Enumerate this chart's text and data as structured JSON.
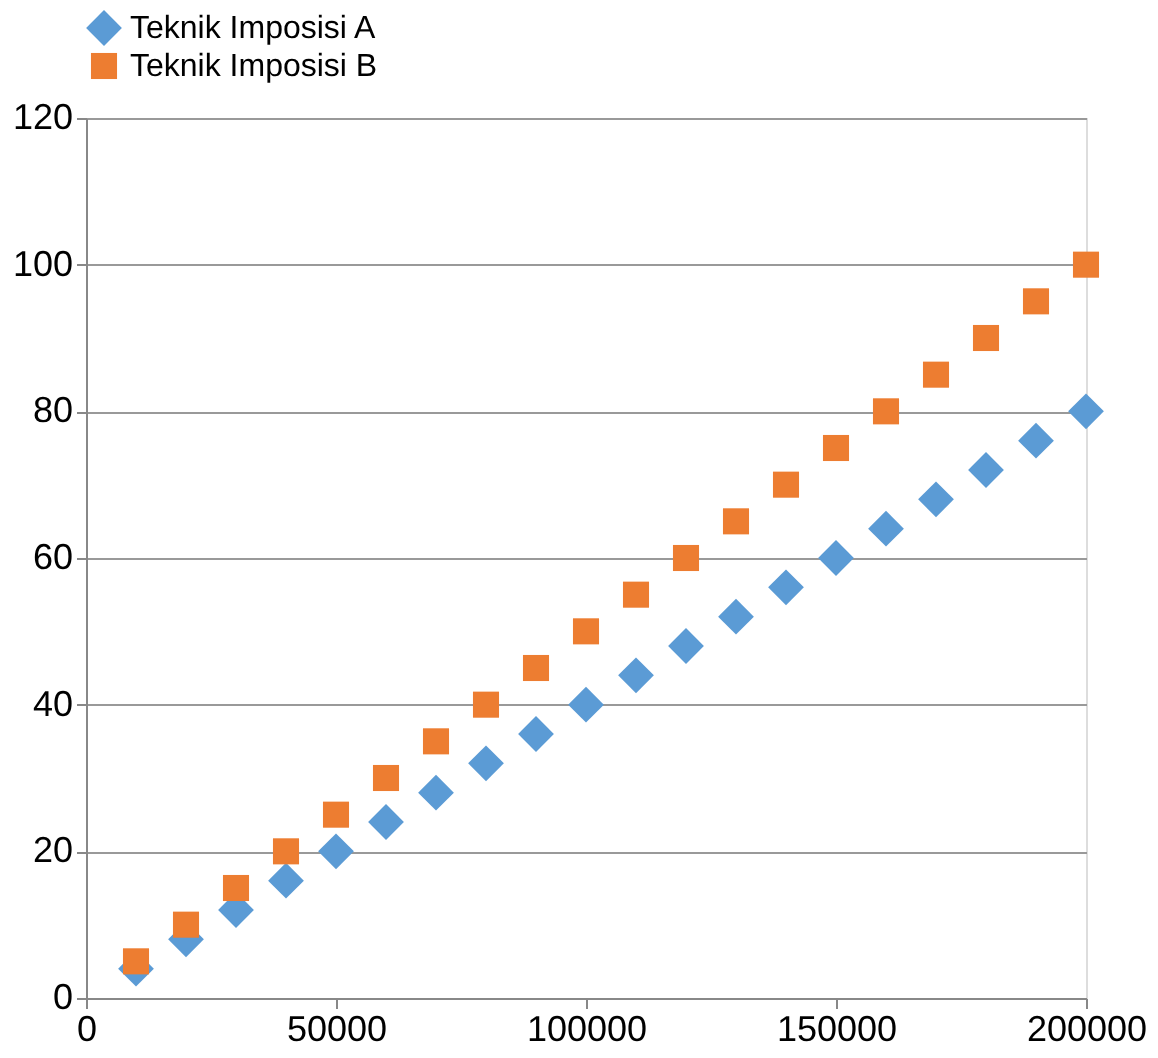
{
  "chart_data": {
    "type": "scatter",
    "x": [
      10000,
      20000,
      30000,
      40000,
      50000,
      60000,
      70000,
      80000,
      90000,
      100000,
      110000,
      120000,
      130000,
      140000,
      150000,
      160000,
      170000,
      180000,
      190000,
      200000
    ],
    "series": [
      {
        "name": "Teknik Imposisi A",
        "color": "#5b9bd5",
        "marker": "diamond",
        "values": [
          4,
          8,
          12,
          16,
          20,
          24,
          28,
          32,
          36,
          40,
          44,
          48,
          52,
          56,
          60,
          64,
          68,
          72,
          76,
          80
        ]
      },
      {
        "name": "Teknik Imposisi B",
        "color": "#ed7d31",
        "marker": "square",
        "values": [
          5,
          10,
          15,
          20,
          25,
          30,
          35,
          40,
          45,
          50,
          55,
          60,
          65,
          70,
          75,
          80,
          85,
          90,
          95,
          100
        ]
      }
    ],
    "xlim": [
      0,
      200000
    ],
    "xticks": [
      0,
      50000,
      100000,
      150000,
      200000
    ],
    "ylim": [
      0,
      120
    ],
    "yticks": [
      0,
      20,
      40,
      60,
      80,
      100,
      120
    ],
    "grid": "y",
    "legend": "top"
  }
}
